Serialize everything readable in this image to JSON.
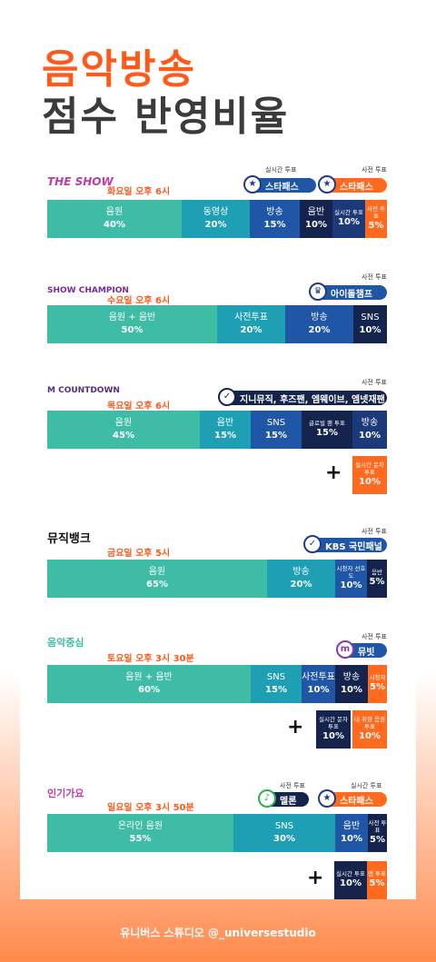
{
  "title": {
    "line1": "음악방송",
    "line2": "점수 반영비율"
  },
  "colors": {
    "orange": "#ff5a1a",
    "teal": "#3fbca5",
    "blue_teal": "#1e9fb3",
    "blue": "#1f56a6",
    "navy": "#14244d",
    "accent": "#ff6a1f"
  },
  "shows": [
    {
      "logo": "THE SHOW",
      "day": "화요일 오후 6시",
      "tag1": "실시간 투표",
      "tag2": "사전 투표",
      "pill1": "스타패스",
      "pill2": "스타패스",
      "segs": [
        {
          "l": "음원",
          "v": "40%"
        },
        {
          "l": "동영상",
          "v": "20%"
        },
        {
          "l": "방송",
          "v": "15%"
        },
        {
          "l": "음반",
          "v": "10%"
        },
        {
          "l": "실시간 투표",
          "v": "10%"
        },
        {
          "l": "사전 투표",
          "v": "5%"
        }
      ]
    },
    {
      "logo": "SHOW CHAMPION",
      "day": "수요일 오후 6시",
      "tag1": "사전 투표",
      "pill1": "아이돌챔프",
      "segs": [
        {
          "l": "음원 + 음반",
          "v": "50%"
        },
        {
          "l": "사전투표",
          "v": "20%"
        },
        {
          "l": "방송",
          "v": "20%"
        },
        {
          "l": "SNS",
          "v": "10%"
        }
      ]
    },
    {
      "logo": "M COUNTDOWN",
      "day": "목요일 오후 6시",
      "tag1": "사전 투표",
      "pill1": "지니뮤직, 후즈팬, 엠웨이브, 엠넷재팬",
      "segs": [
        {
          "l": "음원",
          "v": "45%"
        },
        {
          "l": "음반",
          "v": "15%"
        },
        {
          "l": "SNS",
          "v": "15%"
        },
        {
          "l": "글로벌 팬 투표",
          "v": "15%"
        },
        {
          "l": "방송",
          "v": "10%"
        }
      ],
      "extra": [
        {
          "l": "실시간 문자 투표",
          "v": "10%"
        }
      ]
    },
    {
      "logo": "뮤직뱅크",
      "day": "금요일 오후 5시",
      "tag1": "사전 투표",
      "pill1": "KBS 국민패널",
      "segs": [
        {
          "l": "음원",
          "v": "65%"
        },
        {
          "l": "방송",
          "v": "20%"
        },
        {
          "l": "시청자 선호도",
          "v": "10%"
        },
        {
          "l": "음반",
          "v": "5%"
        }
      ]
    },
    {
      "logo": "음악중심",
      "day": "토요일 오후 3시 30분",
      "tag1": "사전 투표",
      "pill1": "뮤빗",
      "segs": [
        {
          "l": "음원 + 음반",
          "v": "60%"
        },
        {
          "l": "SNS",
          "v": "15%"
        },
        {
          "l": "사전투표",
          "v": "10%"
        },
        {
          "l": "방송",
          "v": "10%"
        },
        {
          "l": "시청자",
          "v": "5%"
        }
      ],
      "extra": [
        {
          "l": "실시간 문자 투표",
          "v": "10%"
        },
        {
          "l": "내 취향 음원 투표",
          "v": "10%"
        }
      ]
    },
    {
      "logo": "인기가요",
      "day": "일요일 오후 3시 50분",
      "tag1": "사전 투표",
      "tag2": "실시간 투표",
      "pill1": "멜론",
      "pill2": "스타패스",
      "segs": [
        {
          "l": "온라인 음원",
          "v": "55%"
        },
        {
          "l": "SNS",
          "v": "30%"
        },
        {
          "l": "음반",
          "v": "10%"
        },
        {
          "l": "사전 투표",
          "v": "5%"
        }
      ],
      "extra": [
        {
          "l": "실시간 투표",
          "v": "10%"
        },
        {
          "l": "앱 투표",
          "v": "5%"
        }
      ]
    }
  ],
  "footer": "유니버스 스튜디오 @_universestudio"
}
